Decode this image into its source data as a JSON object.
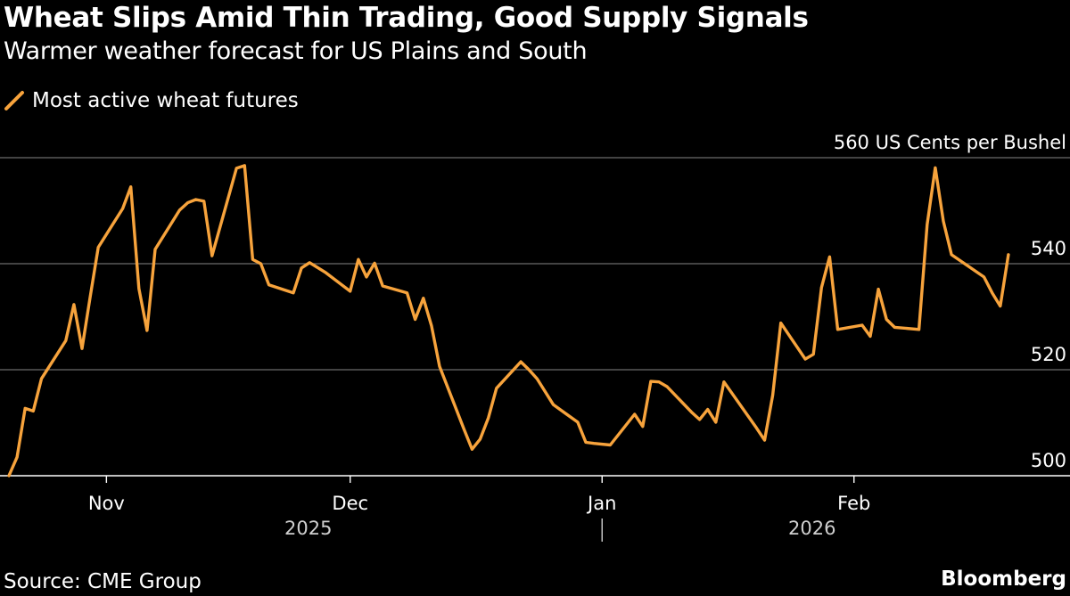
{
  "header": {
    "title": "Wheat Slips Amid Thin Trading, Good Supply Signals",
    "subtitle": "Warmer weather forecast for US Plains and South"
  },
  "footer": {
    "source": "Source: CME Group",
    "brand": "Bloomberg"
  },
  "colors": {
    "background": "#000000",
    "series": "#f7a33c",
    "grid": "#6b6b6b",
    "text": "#ffffff",
    "muted": "#cfcfcf"
  },
  "chart_data": {
    "type": "line",
    "unit_label": "560 US Cents per Bushel",
    "ylim": [
      500,
      560
    ],
    "y_ticks": [
      500,
      520,
      540
    ],
    "grid": true,
    "legend_position": "top-left",
    "x_range": [
      "2025-10-20",
      "2026-02-21"
    ],
    "month_ticks": [
      {
        "date": "2025-11-01",
        "label": "Nov"
      },
      {
        "date": "2025-12-01",
        "label": "Dec"
      },
      {
        "date": "2026-01-01",
        "label": "Jan"
      },
      {
        "date": "2026-02-01",
        "label": "Feb"
      }
    ],
    "year_labels": [
      {
        "date": "2025-12-01",
        "label": "2025"
      },
      {
        "date": "2026-02-01",
        "label": "2026"
      }
    ],
    "year_separator_date": "2026-01-01",
    "series": [
      {
        "name": "Most active wheat futures",
        "x": [
          "2025-10-20",
          "2025-10-21",
          "2025-10-22",
          "2025-10-23",
          "2025-10-24",
          "2025-10-27",
          "2025-10-28",
          "2025-10-29",
          "2025-10-30",
          "2025-10-31",
          "2025-11-03",
          "2025-11-04",
          "2025-11-05",
          "2025-11-06",
          "2025-11-07",
          "2025-11-10",
          "2025-11-11",
          "2025-11-12",
          "2025-11-13",
          "2025-11-14",
          "2025-11-17",
          "2025-11-18",
          "2025-11-19",
          "2025-11-20",
          "2025-11-21",
          "2025-11-24",
          "2025-11-25",
          "2025-11-26",
          "2025-11-28",
          "2025-12-01",
          "2025-12-02",
          "2025-12-03",
          "2025-12-04",
          "2025-12-05",
          "2025-12-08",
          "2025-12-09",
          "2025-12-10",
          "2025-12-11",
          "2025-12-12",
          "2025-12-15",
          "2025-12-16",
          "2025-12-17",
          "2025-12-18",
          "2025-12-19",
          "2025-12-22",
          "2025-12-23",
          "2025-12-24",
          "2025-12-26",
          "2025-12-29",
          "2025-12-30",
          "2025-12-31",
          "2026-01-02",
          "2026-01-05",
          "2026-01-06",
          "2026-01-07",
          "2026-01-08",
          "2026-01-09",
          "2026-01-12",
          "2026-01-13",
          "2026-01-14",
          "2026-01-15",
          "2026-01-16",
          "2026-01-20",
          "2026-01-21",
          "2026-01-22",
          "2026-01-23",
          "2026-01-26",
          "2026-01-27",
          "2026-01-28",
          "2026-01-29",
          "2026-01-30",
          "2026-02-02",
          "2026-02-03",
          "2026-02-04",
          "2026-02-05",
          "2026-02-06",
          "2026-02-09",
          "2026-02-10",
          "2026-02-11",
          "2026-02-12",
          "2026-02-13",
          "2026-02-17",
          "2026-02-18",
          "2026-02-19",
          "2026-02-20"
        ],
        "values": [
          500.0,
          503.5,
          512.7,
          512.2,
          518.3,
          525.5,
          532.3,
          524.0,
          533.7,
          543.1,
          550.4,
          554.5,
          535.3,
          527.4,
          542.7,
          550.1,
          551.5,
          552.1,
          551.8,
          541.5,
          558.0,
          558.5,
          540.8,
          540.0,
          536.0,
          534.5,
          539.2,
          540.2,
          538.3,
          534.8,
          540.8,
          537.5,
          540.1,
          535.8,
          534.5,
          529.5,
          533.5,
          528.3,
          520.6,
          508.8,
          505.0,
          506.9,
          510.9,
          516.5,
          521.5,
          520.0,
          518.3,
          513.4,
          510.1,
          506.3,
          506.1,
          505.8,
          511.6,
          509.3,
          517.8,
          517.7,
          516.8,
          512.0,
          510.6,
          512.5,
          510.1,
          517.7,
          509.0,
          506.7,
          515.2,
          528.8,
          522.0,
          522.9,
          535.5,
          541.3,
          527.6,
          528.4,
          526.3,
          535.2,
          529.5,
          528.0,
          527.6,
          547.4,
          558.1,
          548.0,
          541.7,
          537.5,
          534.5,
          532.0,
          541.7
        ]
      }
    ]
  }
}
